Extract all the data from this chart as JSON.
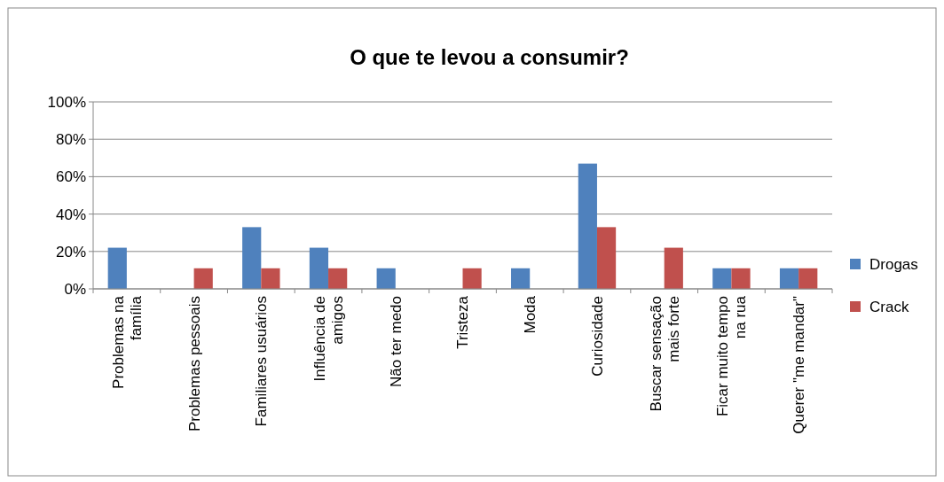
{
  "chart_data": {
    "type": "bar",
    "title": "O que te levou a consumir?",
    "categories": [
      "Problemas na família",
      "Problemas pessoais",
      "Familiares usuários",
      "Influência de amigos",
      "Não ter medo",
      "Tristeza",
      "Moda",
      "Curiosidade",
      "Buscar sensação mais forte",
      "Ficar muito tempo na rua",
      "Querer \"me mandar\""
    ],
    "series": [
      {
        "name": "Drogas",
        "color": "#4f81bd",
        "values": [
          22,
          0,
          33,
          22,
          11,
          0,
          11,
          67,
          0,
          11,
          11
        ]
      },
      {
        "name": "Crack",
        "color": "#c0504d",
        "values": [
          0,
          11,
          11,
          11,
          0,
          11,
          0,
          33,
          22,
          11,
          11
        ]
      }
    ],
    "ylim": [
      0,
      100
    ],
    "yticks": [
      {
        "value": 0,
        "label": "0%"
      },
      {
        "value": 20,
        "label": "20%"
      },
      {
        "value": 40,
        "label": "40%"
      },
      {
        "value": 60,
        "label": "60%"
      },
      {
        "value": 80,
        "label": "80%"
      },
      {
        "value": 100,
        "label": "100%"
      }
    ],
    "grid": "y",
    "legend": "right"
  }
}
